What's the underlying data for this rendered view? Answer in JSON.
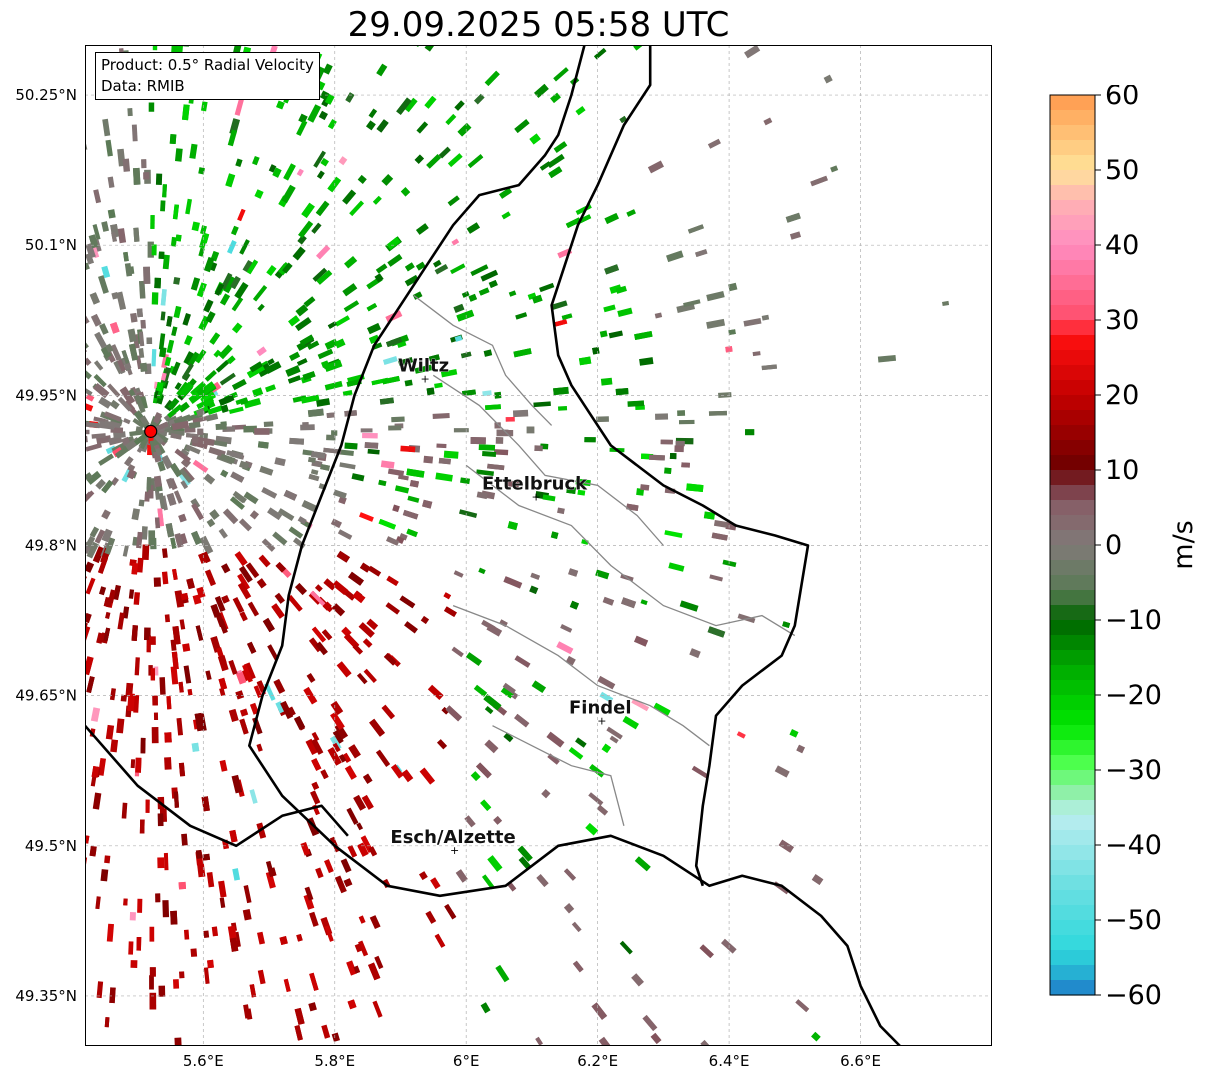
{
  "title": "29.09.2025 05:58 UTC",
  "info": {
    "product": "Product: 0.5° Radial Velocity",
    "data": "Data: RMIB"
  },
  "map": {
    "extent": {
      "lon_min": 5.42,
      "lon_max": 6.8,
      "lat_min": 49.3,
      "lat_max": 50.3
    },
    "lat_ticks": [
      {
        "value": 50.25,
        "label": "50.25°N"
      },
      {
        "value": 50.1,
        "label": "50.1°N"
      },
      {
        "value": 49.95,
        "label": "49.95°N"
      },
      {
        "value": 49.8,
        "label": "49.8°N"
      },
      {
        "value": 49.65,
        "label": "49.65°N"
      },
      {
        "value": 49.5,
        "label": "49.5°N"
      },
      {
        "value": 49.35,
        "label": "49.35°N"
      }
    ],
    "lon_ticks": [
      {
        "value": 5.6,
        "label": "5.6°E"
      },
      {
        "value": 5.8,
        "label": "5.8°E"
      },
      {
        "value": 6.0,
        "label": "6°E"
      },
      {
        "value": 6.2,
        "label": "6.2°E"
      },
      {
        "value": 6.4,
        "label": "6.4°E"
      },
      {
        "value": 6.6,
        "label": "6.6°E"
      }
    ],
    "radar_site": {
      "lon": 5.52,
      "lat": 49.914,
      "color": "#ff0000"
    },
    "places": [
      {
        "name": "Wiltz",
        "lon": 5.935,
        "lat": 49.966
      },
      {
        "name": "Ettelbruck",
        "lon": 6.104,
        "lat": 49.848
      },
      {
        "name": "Findel",
        "lon": 6.204,
        "lat": 49.624
      },
      {
        "name": "Esch/Alzette",
        "lon": 5.98,
        "lat": 49.495
      }
    ],
    "border": [
      [
        6.18,
        50.3
      ],
      [
        6.16,
        50.25
      ],
      [
        6.14,
        50.21
      ],
      [
        6.12,
        50.19
      ],
      [
        6.08,
        50.16
      ],
      [
        6.02,
        50.15
      ],
      [
        5.98,
        50.12
      ],
      [
        5.94,
        50.08
      ],
      [
        5.9,
        50.04
      ],
      [
        5.86,
        50.0
      ],
      [
        5.83,
        49.95
      ],
      [
        5.81,
        49.9
      ],
      [
        5.78,
        49.85
      ],
      [
        5.75,
        49.8
      ],
      [
        5.73,
        49.75
      ],
      [
        5.72,
        49.7
      ],
      [
        5.69,
        49.65
      ],
      [
        5.67,
        49.6
      ],
      [
        5.72,
        49.55
      ],
      [
        5.8,
        49.5
      ],
      [
        5.88,
        49.46
      ],
      [
        5.96,
        49.45
      ],
      [
        6.06,
        49.46
      ],
      [
        6.14,
        49.5
      ],
      [
        6.22,
        49.51
      ],
      [
        6.3,
        49.49
      ],
      [
        6.37,
        49.46
      ],
      [
        6.42,
        49.47
      ],
      [
        6.48,
        49.46
      ],
      [
        6.54,
        49.43
      ],
      [
        6.58,
        49.4
      ],
      [
        6.6,
        49.36
      ],
      [
        6.63,
        49.32
      ],
      [
        6.66,
        49.3
      ]
    ],
    "border_west": [
      [
        5.42,
        49.62
      ],
      [
        5.5,
        49.56
      ],
      [
        5.58,
        49.52
      ],
      [
        5.65,
        49.5
      ],
      [
        5.72,
        49.53
      ],
      [
        5.78,
        49.54
      ],
      [
        5.82,
        49.51
      ]
    ],
    "border_east": [
      [
        6.28,
        50.3
      ],
      [
        6.28,
        50.26
      ],
      [
        6.24,
        50.22
      ],
      [
        6.2,
        50.16
      ],
      [
        6.17,
        50.12
      ],
      [
        6.15,
        50.08
      ],
      [
        6.13,
        50.04
      ],
      [
        6.14,
        49.99
      ],
      [
        6.16,
        49.96
      ],
      [
        6.19,
        49.93
      ],
      [
        6.22,
        49.9
      ],
      [
        6.26,
        49.88
      ],
      [
        6.3,
        49.86
      ],
      [
        6.36,
        49.84
      ],
      [
        6.41,
        49.82
      ],
      [
        6.47,
        49.81
      ],
      [
        6.52,
        49.8
      ],
      [
        6.51,
        49.76
      ],
      [
        6.5,
        49.72
      ],
      [
        6.48,
        49.69
      ],
      [
        6.42,
        49.66
      ],
      [
        6.38,
        49.63
      ],
      [
        6.37,
        49.58
      ],
      [
        6.36,
        49.54
      ],
      [
        6.35,
        49.48
      ],
      [
        6.36,
        49.46
      ]
    ],
    "canton_lines": [
      [
        [
          5.92,
          50.05
        ],
        [
          5.98,
          50.02
        ],
        [
          6.04,
          50.0
        ],
        [
          6.06,
          49.97
        ],
        [
          6.1,
          49.94
        ],
        [
          6.13,
          49.92
        ]
      ],
      [
        [
          5.95,
          49.97
        ],
        [
          6.02,
          49.94
        ],
        [
          6.08,
          49.9
        ],
        [
          6.12,
          49.87
        ],
        [
          6.2,
          49.86
        ],
        [
          6.26,
          49.83
        ],
        [
          6.3,
          49.8
        ]
      ],
      [
        [
          6.0,
          49.88
        ],
        [
          6.08,
          49.84
        ],
        [
          6.16,
          49.82
        ],
        [
          6.22,
          49.78
        ],
        [
          6.3,
          49.74
        ],
        [
          6.38,
          49.72
        ],
        [
          6.45,
          49.73
        ],
        [
          6.5,
          49.71
        ]
      ],
      [
        [
          5.98,
          49.74
        ],
        [
          6.06,
          49.72
        ],
        [
          6.14,
          49.69
        ],
        [
          6.2,
          49.66
        ],
        [
          6.28,
          49.64
        ],
        [
          6.33,
          49.62
        ],
        [
          6.37,
          49.6
        ]
      ],
      [
        [
          6.04,
          49.62
        ],
        [
          6.1,
          49.6
        ],
        [
          6.16,
          49.58
        ],
        [
          6.22,
          49.57
        ],
        [
          6.24,
          49.52
        ]
      ]
    ]
  },
  "colorbar": {
    "label": "m/s",
    "vmin": -60,
    "vmax": 60,
    "tick_labels": [
      "60",
      "50",
      "40",
      "30",
      "20",
      "10",
      "0",
      "−10",
      "−20",
      "−30",
      "−40",
      "−50",
      "−60"
    ],
    "tick_values": [
      60,
      50,
      40,
      30,
      20,
      10,
      0,
      -10,
      -20,
      -30,
      -40,
      -50,
      -60
    ],
    "color_stops": [
      {
        "v": -60,
        "c": "#1f78c8"
      },
      {
        "v": -57,
        "c": "#26b0d3"
      },
      {
        "v": -54,
        "c": "#2fd8dc"
      },
      {
        "v": -45,
        "c": "#6fe0e2"
      },
      {
        "v": -36,
        "c": "#bbeeef"
      },
      {
        "v": -33,
        "c": "#8ff0a8"
      },
      {
        "v": -29,
        "c": "#4dff4d"
      },
      {
        "v": -24,
        "c": "#00e600"
      },
      {
        "v": -16,
        "c": "#00a800"
      },
      {
        "v": -10,
        "c": "#006400"
      },
      {
        "v": -6,
        "c": "#5a7a55"
      },
      {
        "v": 0,
        "c": "#807a78"
      },
      {
        "v": 5,
        "c": "#866068"
      },
      {
        "v": 8,
        "c": "#7a3540"
      },
      {
        "v": 10,
        "c": "#6b0000"
      },
      {
        "v": 20,
        "c": "#c40000"
      },
      {
        "v": 28,
        "c": "#ff1010"
      },
      {
        "v": 30,
        "c": "#ff4d6a"
      },
      {
        "v": 40,
        "c": "#ff8cc0"
      },
      {
        "v": 46,
        "c": "#ffb3b3"
      },
      {
        "v": 50,
        "c": "#ffe39a"
      },
      {
        "v": 60,
        "c": "#ff9a4d"
      }
    ]
  }
}
